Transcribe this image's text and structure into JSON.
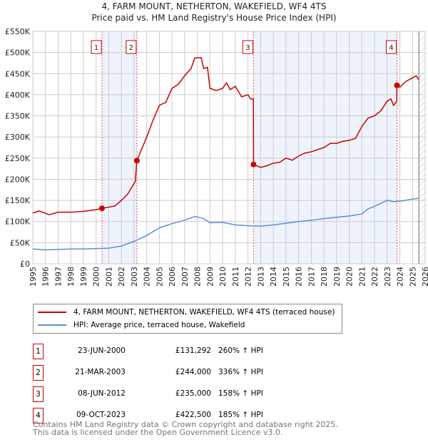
{
  "title": "4, FARM MOUNT, NETHERTON, WAKEFIELD, WF4 4TS",
  "subtitle": "Price paid vs. HM Land Registry's House Price Index (HPI)",
  "chart_data": {
    "type": "line",
    "xlim": [
      1995,
      2026
    ],
    "ylim": [
      0,
      550000
    ],
    "yticks": [
      0,
      50000,
      100000,
      150000,
      200000,
      250000,
      300000,
      350000,
      400000,
      450000,
      500000,
      550000
    ],
    "ytick_labels": [
      "£0",
      "£50K",
      "£100K",
      "£150K",
      "£200K",
      "£250K",
      "£300K",
      "£350K",
      "£400K",
      "£450K",
      "£500K",
      "£550K"
    ],
    "xticks": [
      "1995",
      "1996",
      "1997",
      "1998",
      "1999",
      "2000",
      "2001",
      "2002",
      "2003",
      "2004",
      "2005",
      "2006",
      "2007",
      "2008",
      "2009",
      "2010",
      "2011",
      "2012",
      "2013",
      "2014",
      "2015",
      "2016",
      "2017",
      "2018",
      "2019",
      "2020",
      "2021",
      "2022",
      "2023",
      "2024",
      "2025",
      "2026"
    ],
    "grid": true,
    "series": [
      {
        "name": "4, FARM MOUNT, NETHERTON, WAKEFIELD, WF4 4TS (terraced house)",
        "color": "#cc0000",
        "x": [
          1995,
          1995.5,
          1996.3,
          1997,
          1998,
          1999,
          2000,
          2000.47,
          2001,
          2001.5,
          2002,
          2002.5,
          2003.1,
          2003.22,
          2004,
          2004.5,
          2005,
          2005.5,
          2006,
          2006.5,
          2007,
          2007.5,
          2007.8,
          2008.3,
          2008.5,
          2008.8,
          2009,
          2009.5,
          2010,
          2010.3,
          2010.6,
          2011,
          2011.5,
          2012,
          2012.2,
          2012.43,
          2012.44,
          2013,
          2013.5,
          2014,
          2014.5,
          2015,
          2015.5,
          2016,
          2016.5,
          2017,
          2017.5,
          2018,
          2018.5,
          2019,
          2019.5,
          2020,
          2020.5,
          2021,
          2021.5,
          2022,
          2022.5,
          2023,
          2023.3,
          2023.5,
          2023.76,
          2023.77,
          2024,
          2024.5,
          2025,
          2025.3,
          2025.5
        ],
        "y": [
          120,
          125,
          116,
          122,
          122,
          124,
          128,
          131.3,
          134,
          137,
          150,
          165,
          195,
          244,
          300,
          340,
          375,
          382,
          415,
          425,
          445,
          462,
          487,
          488,
          462,
          465,
          415,
          410,
          415,
          428,
          412,
          420,
          395,
          400,
          390,
          390,
          235,
          228,
          232,
          238,
          240,
          250,
          245,
          255,
          262,
          265,
          270,
          275,
          285,
          285,
          290,
          292,
          297,
          325,
          345,
          350,
          362,
          385,
          390,
          375,
          385,
          422.5,
          418,
          432,
          440,
          445,
          435
        ]
      },
      {
        "name": "HPI: Average price, terraced house, Wakefield",
        "color": "#5b8fd4",
        "x": [
          1995,
          1996,
          1997,
          1998,
          1999,
          2000,
          2001,
          2002,
          2003,
          2004,
          2005,
          2006,
          2007,
          2007.8,
          2008.5,
          2009,
          2010,
          2011,
          2012,
          2013,
          2014,
          2015,
          2016,
          2017,
          2018,
          2019,
          2020,
          2021,
          2021.5,
          2022,
          2023,
          2023.5,
          2024,
          2025,
          2025.5
        ],
        "y": [
          35,
          33,
          34,
          35,
          35,
          36,
          37,
          42,
          53,
          67,
          85,
          95,
          103,
          112,
          107,
          97,
          98,
          92,
          90,
          89,
          92,
          96,
          100,
          103,
          107,
          110,
          113,
          118,
          130,
          136,
          150,
          147,
          148,
          153,
          155
        ]
      }
    ],
    "y_units": "thousands GBP",
    "sales": [
      {
        "n": "1",
        "date": "23-JUN-2000",
        "x": 2000.47,
        "price": "£131,292",
        "value": 131.292,
        "hpi": "260% ↑ HPI"
      },
      {
        "n": "2",
        "date": "21-MAR-2003",
        "x": 2003.22,
        "price": "£244,000",
        "value": 244,
        "hpi": "336% ↑ HPI"
      },
      {
        "n": "3",
        "date": "08-JUN-2012",
        "x": 2012.44,
        "price": "£235,000",
        "value": 235,
        "hpi": "158% ↑ HPI"
      },
      {
        "n": "4",
        "date": "09-OCT-2023",
        "x": 2023.77,
        "price": "£422,500",
        "value": 422.5,
        "hpi": "185% ↑ HPI"
      }
    ],
    "shaded": [
      [
        2000.47,
        2003.22
      ],
      [
        2012.44,
        2023.77
      ]
    ],
    "forecast_from": 2025.5
  },
  "legend": [
    "4, FARM MOUNT, NETHERTON, WAKEFIELD, WF4 4TS (terraced house)",
    "HPI: Average price, terraced house, Wakefield"
  ],
  "footer": [
    "Contains HM Land Registry data © Crown copyright and database right 2025.",
    "This data is licensed under the Open Government Licence v3.0."
  ]
}
